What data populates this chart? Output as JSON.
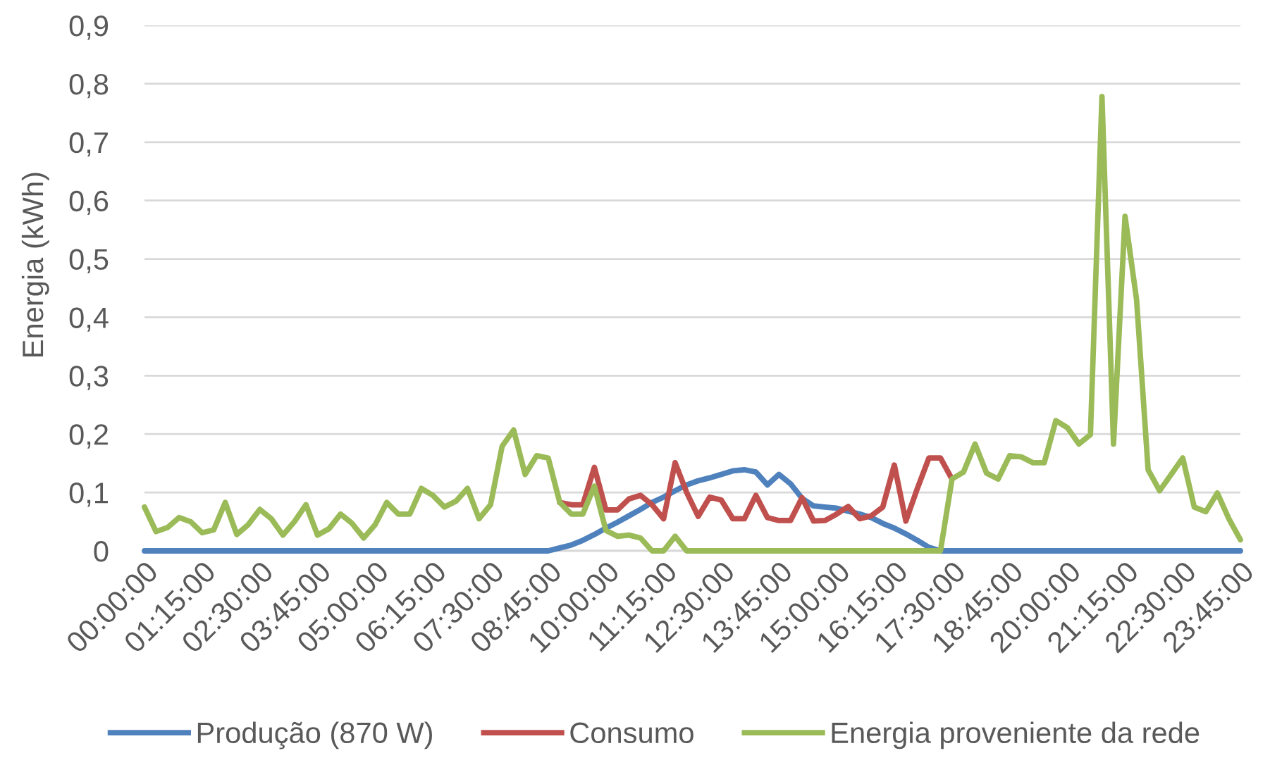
{
  "chart_data": {
    "type": "line",
    "ylabel": "Energia (kWh)",
    "categories": [
      "00:00:00",
      null,
      null,
      null,
      null,
      "01:15:00",
      null,
      null,
      null,
      null,
      "02:30:00",
      null,
      null,
      null,
      null,
      "03:45:00",
      null,
      null,
      null,
      null,
      "05:00:00",
      null,
      null,
      null,
      null,
      "06:15:00",
      null,
      null,
      null,
      null,
      "07:30:00",
      null,
      null,
      null,
      null,
      "08:45:00",
      null,
      null,
      null,
      null,
      "10:00:00",
      null,
      null,
      null,
      null,
      "11:15:00",
      null,
      null,
      null,
      null,
      "12:30:00",
      null,
      null,
      null,
      null,
      "13:45:00",
      null,
      null,
      null,
      null,
      "15:00:00",
      null,
      null,
      null,
      null,
      "16:15:00",
      null,
      null,
      null,
      null,
      "17:30:00",
      null,
      null,
      null,
      null,
      "18:45:00",
      null,
      null,
      null,
      null,
      "20:00:00",
      null,
      null,
      null,
      null,
      "21:15:00",
      null,
      null,
      null,
      null,
      "22:30:00",
      null,
      null,
      null,
      null,
      "23:45:00"
    ],
    "series": [
      {
        "name": "Produção (870 W)",
        "color": "#4f81bd",
        "values": [
          0,
          0,
          0,
          0,
          0,
          0,
          0,
          0,
          0,
          0,
          0,
          0,
          0,
          0,
          0,
          0,
          0,
          0,
          0,
          0,
          0,
          0,
          0,
          0,
          0,
          0,
          0,
          0,
          0,
          0,
          0,
          0,
          0,
          0,
          0,
          0,
          0.005,
          0.01,
          0.018,
          0.028,
          0.039,
          0.049,
          0.06,
          0.071,
          0.083,
          0.092,
          0.103,
          0.113,
          0.12,
          0.125,
          0.131,
          0.137,
          0.139,
          0.135,
          0.113,
          0.131,
          0.115,
          0.09,
          0.077,
          0.075,
          0.073,
          0.068,
          0.063,
          0.057,
          0.047,
          0.039,
          0.029,
          0.018,
          0.006,
          0,
          0,
          0,
          0,
          0,
          0,
          0,
          0,
          0,
          0,
          0,
          0,
          0,
          0,
          0,
          0,
          0,
          0,
          0,
          0,
          0,
          0,
          0,
          0,
          0,
          0,
          0
        ]
      },
      {
        "name": "Consumo",
        "color": "#c0504d",
        "values": [
          null,
          null,
          null,
          null,
          null,
          null,
          null,
          null,
          null,
          null,
          null,
          null,
          null,
          null,
          null,
          null,
          null,
          null,
          null,
          null,
          null,
          null,
          null,
          null,
          null,
          null,
          null,
          null,
          null,
          null,
          null,
          null,
          null,
          null,
          null,
          null,
          0.083,
          0.079,
          0.079,
          0.143,
          0.07,
          0.07,
          0.089,
          0.095,
          0.079,
          0.055,
          0.151,
          0.1,
          0.059,
          0.092,
          0.087,
          0.055,
          0.055,
          0.095,
          0.057,
          0.052,
          0.052,
          0.091,
          0.051,
          0.052,
          0.063,
          0.076,
          0.055,
          0.06,
          0.075,
          0.147,
          0.051,
          0.107,
          0.159,
          0.159,
          0.123,
          null,
          null,
          null,
          null,
          null,
          null,
          null,
          null,
          null,
          null,
          null,
          null,
          null,
          null,
          null,
          null,
          null,
          null,
          null,
          null,
          null,
          null,
          null,
          null,
          null
        ]
      },
      {
        "name": "Energia proveniente da rede",
        "color": "#9bbb59",
        "values": [
          0.075,
          0.033,
          0.04,
          0.057,
          0.05,
          0.031,
          0.036,
          0.083,
          0.028,
          0.045,
          0.071,
          0.055,
          0.027,
          0.05,
          0.079,
          0.027,
          0.038,
          0.063,
          0.047,
          0.022,
          0.045,
          0.083,
          0.063,
          0.063,
          0.107,
          0.095,
          0.075,
          0.085,
          0.107,
          0.055,
          0.079,
          0.179,
          0.207,
          0.131,
          0.163,
          0.159,
          0.083,
          0.063,
          0.063,
          0.111,
          0.035,
          0.025,
          0.027,
          0.022,
          0,
          0,
          0.025,
          0,
          0,
          0,
          0,
          0,
          0,
          0,
          0,
          0,
          0,
          0,
          0,
          0,
          0,
          0,
          0,
          0,
          0,
          0,
          0,
          0,
          0,
          0,
          0.123,
          0.135,
          0.183,
          0.133,
          0.123,
          0.163,
          0.161,
          0.151,
          0.151,
          0.223,
          0.211,
          0.183,
          0.199,
          0.778,
          0.183,
          0.573,
          0.43,
          0.139,
          0.103,
          0.131,
          0.159,
          0.075,
          0.067,
          0.099,
          0.055,
          0.019
        ]
      }
    ],
    "ylim": [
      0,
      0.9
    ],
    "yticks": [
      0,
      {
        "value": 0.1,
        "label": "0,1"
      },
      {
        "value": 0.2,
        "label": "0,2"
      },
      {
        "value": 0.3,
        "label": "0,3"
      },
      {
        "value": 0.4,
        "label": "0,4"
      },
      {
        "value": 0.5,
        "label": "0,5"
      },
      {
        "value": 0.6,
        "label": "0,6"
      },
      {
        "value": 0.7,
        "label": "0,7"
      },
      {
        "value": 0.8,
        "label": "0,8"
      },
      {
        "value": 0.9,
        "label": "0,9"
      }
    ],
    "grid": "y",
    "legend": "bottom"
  }
}
